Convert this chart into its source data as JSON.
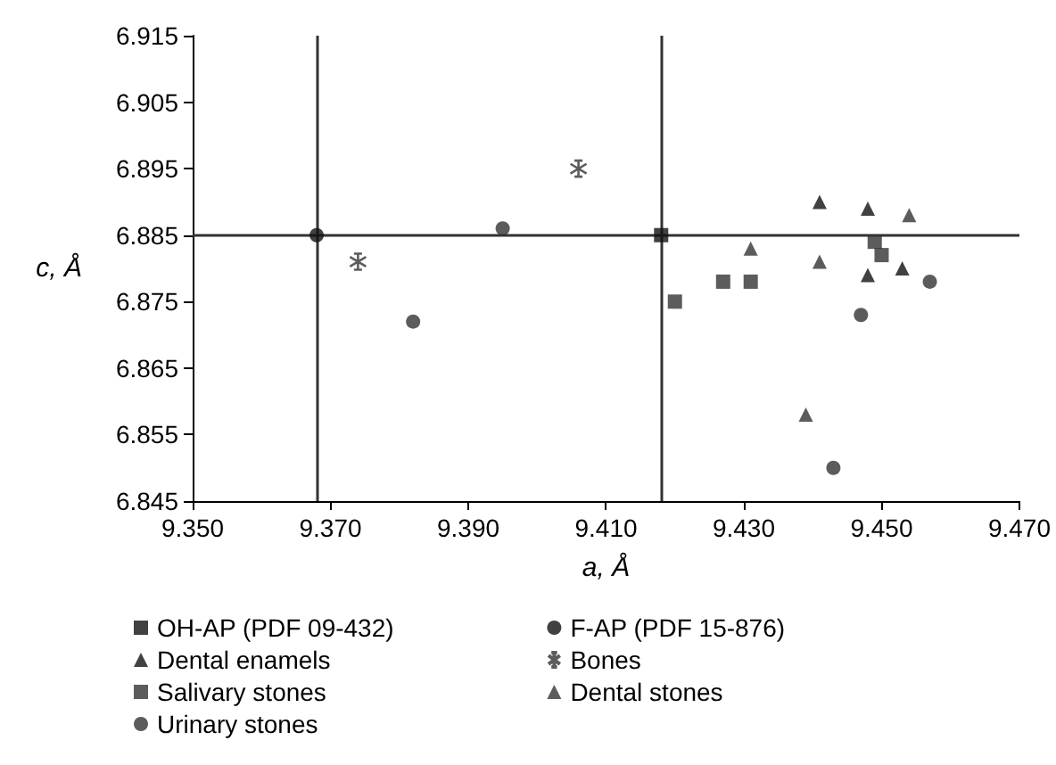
{
  "chart_data": {
    "type": "scatter",
    "xlabel": "a, Å",
    "ylabel": "c, Å",
    "xlim": [
      9.35,
      9.47
    ],
    "xticks": [
      {
        "value": 9.35,
        "label": "9.350"
      },
      {
        "value": 9.37,
        "label": "9.370"
      },
      {
        "value": 9.39,
        "label": "9.390"
      },
      {
        "value": 9.41,
        "label": "9.410"
      },
      {
        "value": 9.43,
        "label": "9.430"
      },
      {
        "value": 9.45,
        "label": "9.450"
      },
      {
        "value": 9.47,
        "label": "9.470"
      }
    ],
    "ylim": [
      6.845,
      6.915
    ],
    "yticks": [
      6.845,
      6.855,
      6.865,
      6.875,
      6.885,
      6.895,
      6.905,
      6.915
    ],
    "grid": false,
    "legend": "bottom",
    "ref_lines": [
      {
        "axis": "x",
        "value": 9.368,
        "color": "#333333"
      },
      {
        "axis": "x",
        "value": 9.418,
        "color": "#333333"
      },
      {
        "axis": "y",
        "value": 6.885,
        "color": "#333333"
      }
    ],
    "series": [
      {
        "name": "OH-AP (PDF 09-432)",
        "color": "#111111",
        "marker": "square",
        "x": [
          9.418
        ],
        "values": [
          6.885
        ]
      },
      {
        "name": "F-AP (PDF 15-876)",
        "color": "#111111",
        "marker": "circle",
        "x": [
          9.368
        ],
        "values": [
          6.885
        ]
      },
      {
        "name": "Dental enamels",
        "color": "#111111",
        "marker": "triangle",
        "x": [
          9.441,
          9.448,
          9.448,
          9.453
        ],
        "values": [
          6.89,
          6.889,
          6.879,
          6.88
        ]
      },
      {
        "name": "Bones",
        "color": "#333333",
        "marker": "cross",
        "x": [
          9.374,
          9.406
        ],
        "values": [
          6.881,
          6.895
        ]
      },
      {
        "name": "Salivary stones",
        "color": "#333333",
        "marker": "square",
        "x": [
          9.42,
          9.427,
          9.431,
          9.449,
          9.45
        ],
        "values": [
          6.875,
          6.878,
          6.878,
          6.884,
          6.882
        ]
      },
      {
        "name": "Dental stones",
        "color": "#333333",
        "marker": "triangle",
        "x": [
          9.454,
          9.431,
          9.441,
          9.439
        ],
        "values": [
          6.888,
          6.883,
          6.881,
          6.858
        ]
      },
      {
        "name": "Urinary stones",
        "color": "#333333",
        "marker": "circle",
        "x": [
          9.382,
          9.395,
          9.443,
          9.447,
          9.457
        ],
        "values": [
          6.872,
          6.886,
          6.85,
          6.873,
          6.878
        ]
      }
    ]
  }
}
